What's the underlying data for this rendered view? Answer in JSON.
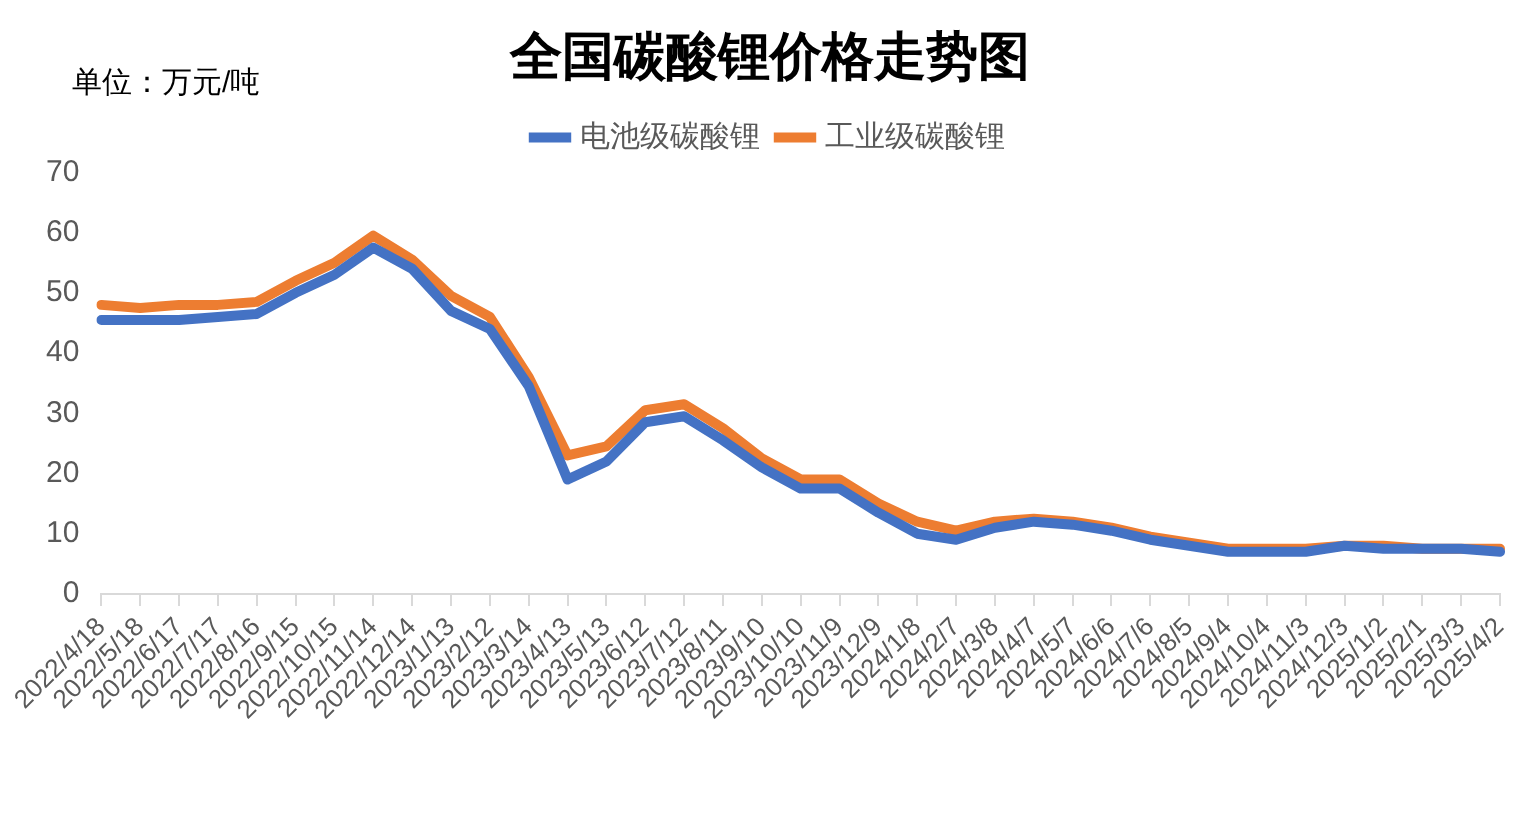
{
  "chart_data": {
    "type": "line",
    "title": "全国碳酸锂价格走势图",
    "annotations": [
      "单位：万元/吨"
    ],
    "categories": [
      "2022/4/18",
      "2022/5/18",
      "2022/6/17",
      "2022/7/17",
      "2022/8/16",
      "2022/9/15",
      "2022/10/15",
      "2022/11/14",
      "2022/12/14",
      "2023/1/13",
      "2023/2/12",
      "2023/3/14",
      "2023/4/13",
      "2023/5/13",
      "2023/6/12",
      "2023/7/12",
      "2023/8/11",
      "2023/9/10",
      "2023/10/10",
      "2023/11/9",
      "2023/12/9",
      "2024/1/8",
      "2024/2/7",
      "2024/3/8",
      "2024/4/7",
      "2024/5/7",
      "2024/6/6",
      "2024/7/6",
      "2024/8/5",
      "2024/9/4",
      "2024/10/4",
      "2024/11/3",
      "2024/12/3",
      "2025/1/2",
      "2025/2/1",
      "2025/3/3",
      "2025/4/2"
    ],
    "series": [
      {
        "name": "电池级碳酸锂",
        "color": "#4472c4",
        "values": [
          45.5,
          45.5,
          45.5,
          46,
          46.5,
          50,
          53,
          57.5,
          54,
          47,
          44,
          34.5,
          19,
          22,
          28.5,
          29.5,
          25.5,
          21,
          17.5,
          17.5,
          13.5,
          10,
          9,
          11,
          12,
          11.5,
          10.5,
          9,
          8,
          7,
          7,
          7,
          8,
          7.5,
          7.5,
          7.5,
          7
        ]
      },
      {
        "name": "工业级碳酸锂",
        "color": "#ed7d31",
        "values": [
          48,
          47.5,
          48,
          48,
          48.5,
          52,
          55,
          59.5,
          55.5,
          49.5,
          46,
          36,
          23,
          24.5,
          30.5,
          31.5,
          27.5,
          22.5,
          19,
          19,
          15,
          12,
          10.5,
          12,
          12.5,
          12,
          11,
          9.5,
          8.5,
          7.5,
          7.5,
          7.5,
          8,
          8,
          7.5,
          7.5,
          7.5
        ]
      }
    ],
    "ylim": [
      0,
      70
    ],
    "yticks": [
      0,
      10,
      20,
      30,
      40,
      50,
      60,
      70
    ],
    "grid": false,
    "legend": "top",
    "marker": "none",
    "line_style": "solid"
  }
}
